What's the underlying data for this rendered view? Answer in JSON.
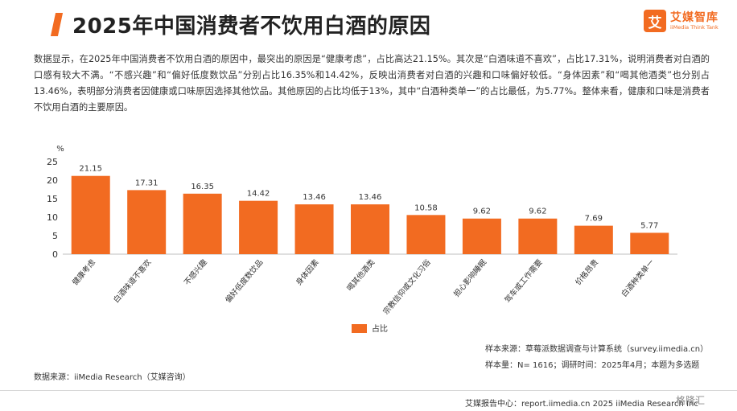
{
  "header": {
    "title": "2025年中国消费者不饮用白酒的原因",
    "logo_badge": "艾",
    "logo_cn": "艾媒智库",
    "logo_en": "iiMedia Think Tank"
  },
  "summary": "数据显示，在2025年中国消费者不饮用白酒的原因中，最突出的原因是“健康考虑”，占比高达21.15%。其次是“白酒味道不喜欢”，占比17.31%，说明消费者对白酒的口感有较大不满。“不感兴趣”和“偏好低度数饮品”分别占比16.35%和14.42%，反映出消费者对白酒的兴趣和口味偏好较低。“身体因素”和“喝其他酒类”也分别占13.46%，表明部分消费者因健康或口味原因选择其他饮品。其他原因的占比均低于13%，其中“白酒种类单一”的占比最低，为5.77%。整体来看，健康和口味是消费者不饮用白酒的主要原因。",
  "chart_data": {
    "type": "bar",
    "ylabel": "%",
    "ylim": [
      0,
      25
    ],
    "yticks": [
      0,
      5,
      10,
      15,
      20,
      25
    ],
    "grid": false,
    "legend_position": "bottom-center",
    "categories": [
      "健康考虑",
      "白酒味道不喜欢",
      "不感兴趣",
      "偏好低度数饮品",
      "身体因素",
      "喝其他酒类",
      "宗教信仰或文化习俗",
      "担心影响睡眠",
      "驾车或工作需要",
      "价格昂贵",
      "白酒种类单一"
    ],
    "series": [
      {
        "name": "占比",
        "color": "#f26b21",
        "values": [
          21.15,
          17.31,
          16.35,
          14.42,
          13.46,
          13.46,
          10.58,
          9.62,
          9.62,
          7.69,
          5.77
        ]
      }
    ]
  },
  "footer": {
    "data_source": "数据来源：iiMedia Research（艾媒咨询）",
    "sample_source": "样本来源：草莓派数据调查与计算系统（survey.iimedia.cn）",
    "sample_size": "样本量：N= 1616；调研时间：2025年4月；本题为多选题",
    "report_center": "艾媒报告中心：report.iimedia.cn    2025 iiMedia Research Inc",
    "watermark": "格隆汇"
  }
}
